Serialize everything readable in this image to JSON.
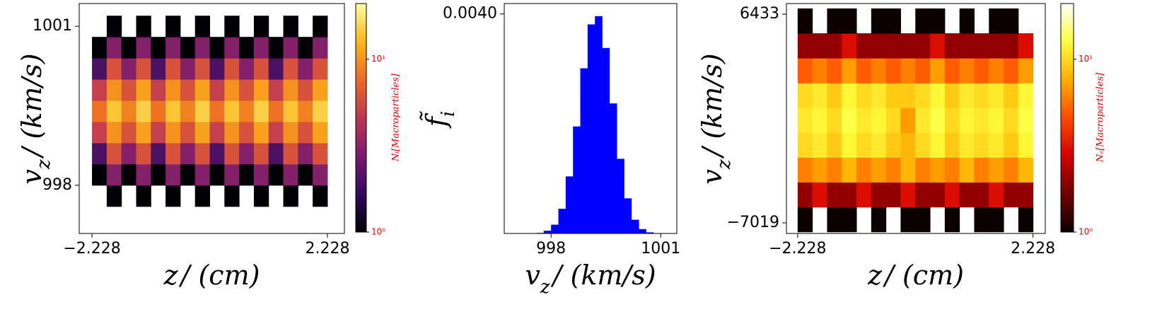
{
  "chart_data": [
    {
      "type": "heatmap",
      "xlabel": {
        "base": "z",
        "rest": "/ (cm)"
      },
      "ylabel": {
        "base": "v",
        "sub": "z",
        "rest": "/ (km/s)"
      },
      "x_edges": [
        -2.228,
        -1.9495,
        -1.671,
        -1.3925,
        -1.114,
        -0.8355,
        -0.557,
        -0.2785,
        0,
        0.2785,
        0.557,
        0.8355,
        1.114,
        1.3925,
        1.671,
        1.9495,
        2.228
      ],
      "y_edges": [
        997.6,
        998.0,
        998.4,
        998.8,
        999.2,
        999.6,
        1000.0,
        1000.4,
        1000.8,
        1001.2
      ],
      "z": [
        [
          0,
          1,
          0,
          1,
          0,
          1,
          0,
          1,
          0,
          1,
          0,
          1,
          0,
          1,
          0,
          1
        ],
        [
          1,
          3,
          1,
          3,
          1,
          3,
          1,
          3,
          1,
          3,
          1,
          3,
          1,
          3,
          1,
          3
        ],
        [
          2,
          6,
          3,
          6,
          2,
          6,
          3,
          6,
          2,
          6,
          3,
          6,
          2,
          6,
          3,
          6
        ],
        [
          5,
          10,
          6,
          11,
          5,
          10,
          6,
          11,
          5,
          10,
          6,
          11,
          5,
          10,
          6,
          11
        ],
        [
          8,
          14,
          9,
          15,
          8,
          14,
          9,
          15,
          8,
          14,
          9,
          15,
          8,
          14,
          9,
          15
        ],
        [
          5,
          10,
          6,
          11,
          5,
          10,
          6,
          11,
          5,
          10,
          6,
          11,
          5,
          10,
          6,
          11
        ],
        [
          2,
          6,
          3,
          6,
          2,
          6,
          3,
          6,
          2,
          6,
          3,
          6,
          2,
          6,
          3,
          6
        ],
        [
          1,
          3,
          1,
          3,
          1,
          3,
          1,
          3,
          1,
          3,
          1,
          3,
          1,
          3,
          1,
          3
        ],
        [
          0,
          1,
          0,
          1,
          0,
          1,
          0,
          1,
          0,
          1,
          0,
          1,
          0,
          1,
          0,
          1
        ]
      ],
      "xlim": [
        -2.47,
        2.55
      ],
      "ylim": [
        997.09,
        1001.43
      ],
      "xticks": [
        {
          "value": -2.228,
          "label": "−2.228"
        },
        2.228
      ],
      "yticks": [
        998,
        1001
      ],
      "colormap": "inferno",
      "colorbar": {
        "label": "Nᵢ[Macroparticles]",
        "lim": [
          1,
          21
        ],
        "log": true,
        "ticks": [
          {
            "value": 1,
            "label": "10⁰"
          },
          {
            "value": 10,
            "label": "10¹"
          }
        ]
      }
    },
    {
      "type": "histogram",
      "xlabel": {
        "base": "v",
        "sub": "z",
        "rest": "/ (km/s)"
      },
      "ylabel": {
        "base": "f̃",
        "sub": "i"
      },
      "bins": [
        997.6,
        997.8,
        998.0,
        998.2,
        998.4,
        998.6,
        998.8,
        999.0,
        999.2,
        999.4,
        999.6,
        999.8,
        1000.0,
        1000.2,
        1000.4,
        1000.6,
        1000.8,
        1001.0
      ],
      "values": [
        1e-05,
        5e-05,
        0.00016,
        0.00045,
        0.00104,
        0.00195,
        0.00301,
        0.00381,
        0.00396,
        0.00338,
        0.00237,
        0.00136,
        0.00064,
        0.00025,
        8e-05,
        2e-05,
        0
      ],
      "color": "#0000ff",
      "xlim": [
        996.72,
        1001.44
      ],
      "ylim": [
        0,
        0.00419
      ],
      "xticks": [
        998,
        1001
      ],
      "yticks": [
        {
          "value": 0.004,
          "label": "0.0040"
        }
      ]
    },
    {
      "type": "heatmap",
      "xlabel": {
        "base": "z",
        "rest": "/ (cm)"
      },
      "ylabel": {
        "base": "v",
        "sub": "z",
        "rest": "/ (km/s)"
      },
      "x_edges": [
        -2.228,
        -1.9495,
        -1.671,
        -1.3925,
        -1.114,
        -0.8355,
        -0.557,
        -0.2785,
        0,
        0.2785,
        0.557,
        0.8355,
        1.114,
        1.3925,
        1.671,
        1.9495,
        2.228
      ],
      "y_edges": [
        -7600,
        -6000,
        -4400,
        -2800,
        -1200,
        400,
        2000,
        3600,
        5200,
        6800
      ],
      "z": [
        [
          1,
          0,
          1,
          1,
          0,
          1,
          0,
          1,
          1,
          0,
          1,
          0,
          1,
          1,
          0,
          1
        ],
        [
          2,
          3,
          2,
          2,
          3,
          2,
          2,
          3,
          2,
          2,
          3,
          2,
          2,
          3,
          2,
          2
        ],
        [
          6,
          7,
          6,
          8,
          6,
          7,
          6,
          8,
          6,
          7,
          6,
          8,
          6,
          7,
          6,
          8
        ],
        [
          10,
          11,
          9,
          12,
          10,
          11,
          9,
          8,
          10,
          12,
          9,
          11,
          10,
          11,
          9,
          12
        ],
        [
          11,
          12,
          10,
          13,
          11,
          12,
          10,
          7,
          11,
          13,
          10,
          12,
          11,
          12,
          10,
          13
        ],
        [
          10,
          11,
          9,
          12,
          10,
          11,
          9,
          9,
          10,
          12,
          9,
          11,
          10,
          11,
          9,
          12
        ],
        [
          5,
          6,
          5,
          7,
          5,
          6,
          5,
          6,
          5,
          7,
          5,
          6,
          5,
          6,
          5,
          7
        ],
        [
          2,
          2,
          2,
          3,
          2,
          2,
          2,
          2,
          2,
          3,
          2,
          2,
          2,
          2,
          2,
          3
        ],
        [
          1,
          0,
          1,
          1,
          0,
          1,
          1,
          0,
          1,
          1,
          0,
          1,
          0,
          1,
          1,
          0
        ]
      ],
      "xlim": [
        -2.44,
        2.46
      ],
      "ylim": [
        -7703,
        7117
      ],
      "xticks": [
        {
          "value": -2.228,
          "label": "−2.228"
        },
        2.228
      ],
      "yticks": [
        {
          "value": -7019,
          "label": "−7019"
        },
        6433
      ],
      "colormap": "hot",
      "colorbar": {
        "label": "Nₑ[Macroparticles]",
        "lim": [
          1,
          21
        ],
        "log": true,
        "ticks": [
          {
            "value": 1,
            "label": "10⁰"
          },
          {
            "value": 10,
            "label": "10¹"
          }
        ]
      }
    }
  ]
}
